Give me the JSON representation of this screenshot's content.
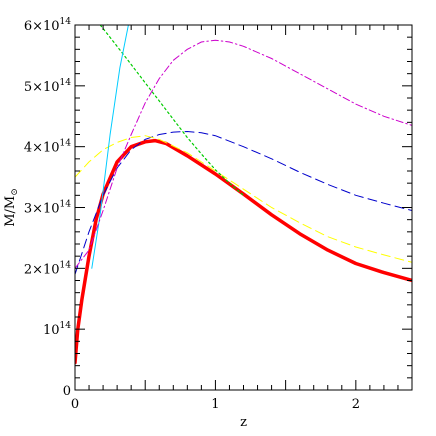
{
  "chart_data": {
    "type": "line",
    "title": "",
    "xlabel": "z",
    "ylabel": "M/M",
    "ylabel_subscript": "⊙",
    "xlim": [
      0,
      2.4
    ],
    "ylim": [
      0,
      600000000000000.0
    ],
    "grid": false,
    "legend": "none",
    "x_ticks": [
      {
        "value": 0,
        "label": "0"
      },
      {
        "value": 1,
        "label": "1"
      },
      {
        "value": 2,
        "label": "2"
      }
    ],
    "y_ticks": [
      {
        "value": 0,
        "label": "0",
        "sup": ""
      },
      {
        "value": 100000000000000.0,
        "label": "10",
        "sup": "14"
      },
      {
        "value": 200000000000000.0,
        "label": "2×10",
        "sup": "14"
      },
      {
        "value": 300000000000000.0,
        "label": "3×10",
        "sup": "14"
      },
      {
        "value": 400000000000000.0,
        "label": "4×10",
        "sup": "14"
      },
      {
        "value": 500000000000000.0,
        "label": "5×10",
        "sup": "14"
      },
      {
        "value": 600000000000000.0,
        "label": "6×10",
        "sup": "14"
      }
    ],
    "series": [
      {
        "color": "#ff0000",
        "style": "solid",
        "width": 3.5,
        "x": [
          0.0,
          0.02,
          0.05,
          0.1,
          0.15,
          0.2,
          0.3,
          0.4,
          0.5,
          0.57,
          0.65,
          0.8,
          1.0,
          1.2,
          1.4,
          1.6,
          1.8,
          2.0,
          2.2,
          2.4
        ],
        "y": [
          45000000000000.0,
          100000000000000.0,
          150000000000000.0,
          220000000000000.0,
          280000000000000.0,
          322000000000000.0,
          375000000000000.0,
          400000000000000.0,
          408000000000000.0,
          410000000000000.0,
          405000000000000.0,
          385000000000000.0,
          355000000000000.0,
          322000000000000.0,
          288000000000000.0,
          257000000000000.0,
          230000000000000.0,
          208000000000000.0,
          193000000000000.0,
          180000000000000.0
        ]
      },
      {
        "color": "#0000cc",
        "style": "dashed",
        "width": 1,
        "x": [
          0.0,
          0.1,
          0.2,
          0.3,
          0.4,
          0.5,
          0.6,
          0.7,
          0.8,
          0.9,
          1.0,
          1.2,
          1.4,
          1.6,
          1.8,
          2.0,
          2.2,
          2.4
        ],
        "y": [
          190000000000000.0,
          260000000000000.0,
          320000000000000.0,
          365000000000000.0,
          395000000000000.0,
          412000000000000.0,
          420000000000000.0,
          424000000000000.0,
          425000000000000.0,
          423000000000000.0,
          418000000000000.0,
          400000000000000.0,
          380000000000000.0,
          358000000000000.0,
          338000000000000.0,
          320000000000000.0,
          307000000000000.0,
          295000000000000.0
        ]
      },
      {
        "color": "#ffff00",
        "style": "dashed",
        "width": 1,
        "x": [
          0.0,
          0.1,
          0.2,
          0.3,
          0.4,
          0.5,
          0.6,
          0.8,
          1.0,
          1.2,
          1.4,
          1.6,
          1.8,
          2.0,
          2.2,
          2.4
        ],
        "y": [
          350000000000000.0,
          375000000000000.0,
          395000000000000.0,
          407000000000000.0,
          415000000000000.0,
          418000000000000.0,
          412000000000000.0,
          390000000000000.0,
          360000000000000.0,
          330000000000000.0,
          300000000000000.0,
          275000000000000.0,
          252000000000000.0,
          235000000000000.0,
          222000000000000.0,
          210000000000000.0
        ]
      },
      {
        "color": "#00cc00",
        "style": "dotted",
        "width": 1.2,
        "x": [
          0.18,
          0.3,
          0.4,
          0.5,
          0.6,
          0.7,
          0.8,
          0.9,
          1.0,
          1.1,
          1.2
        ],
        "y": [
          600000000000000.0,
          565000000000000.0,
          535000000000000.0,
          505000000000000.0,
          475000000000000.0,
          445000000000000.0,
          415000000000000.0,
          388000000000000.0,
          362000000000000.0,
          340000000000000.0,
          320000000000000.0
        ]
      },
      {
        "color": "#00ccff",
        "style": "solid",
        "width": 1,
        "x": [
          0.12,
          0.18,
          0.25,
          0.32,
          0.38
        ],
        "y": [
          200000000000000.0,
          290000000000000.0,
          420000000000000.0,
          530000000000000.0,
          600000000000000.0
        ]
      },
      {
        "color": "#cc00cc",
        "style": "dashdot",
        "width": 1,
        "x": [
          0.0,
          0.1,
          0.2,
          0.3,
          0.4,
          0.5,
          0.6,
          0.7,
          0.8,
          0.9,
          1.0,
          1.1,
          1.2,
          1.4,
          1.6,
          1.8,
          2.0,
          2.2,
          2.4
        ],
        "y": [
          200000000000000.0,
          230000000000000.0,
          295000000000000.0,
          365000000000000.0,
          420000000000000.0,
          472000000000000.0,
          512000000000000.0,
          542000000000000.0,
          560000000000000.0,
          572000000000000.0,
          575000000000000.0,
          572000000000000.0,
          565000000000000.0,
          545000000000000.0,
          520000000000000.0,
          495000000000000.0,
          470000000000000.0,
          450000000000000.0,
          435000000000000.0
        ]
      }
    ]
  }
}
